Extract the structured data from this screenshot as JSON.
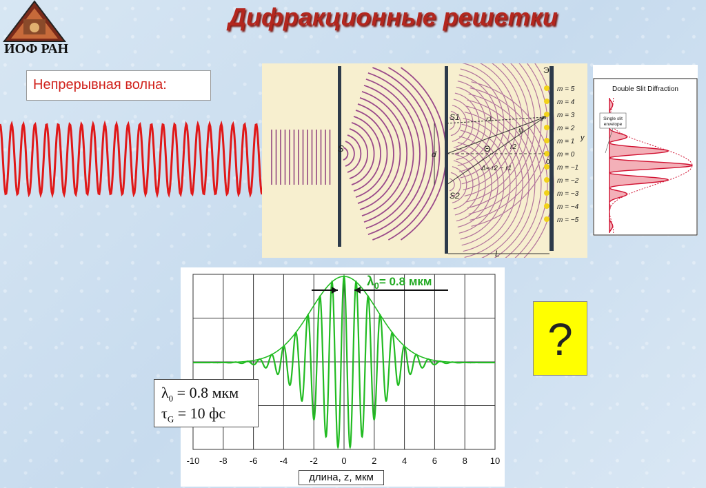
{
  "title": "Дифракционные решетки",
  "logo": {
    "text": "ИОФ РАН"
  },
  "continuous_wave": {
    "label": "Непрерывная волна:",
    "color": "#e01818"
  },
  "diagram": {
    "screen_label": "Э",
    "source_label": "S",
    "slit1_label": "S1",
    "slit2_label": "S2",
    "d_label": "d",
    "L_label": "L",
    "P_label": "P",
    "y_label": "y",
    "zero_label": "0",
    "theta_label": "Θ",
    "psi_label": "ψ",
    "r1_label": "r1",
    "r2_label": "r2",
    "delta_label": "Δ≈ r2 − r1",
    "orders": [
      "m = 5",
      "m = 4",
      "m = 3",
      "m = 2",
      "m = 1",
      "m = 0",
      "m = −1",
      "m = −2",
      "m = −3",
      "m = −4",
      "m = −5"
    ]
  },
  "double_slit": {
    "title": "Double Slit Diffraction",
    "envelope_label_1": "Single slit",
    "envelope_label_2": "envelope"
  },
  "pulse_plot": {
    "annotation": "λ0= 0.8 мкм",
    "annotation_main": "λ",
    "annotation_sub": "0",
    "annotation_rest": "= 0.8 мкм",
    "xlabel": "длина, z, мкм",
    "xticks": [
      "-10",
      "-8",
      "-6",
      "-4",
      "-2",
      "0",
      "2",
      "4",
      "6",
      "8",
      "10"
    ],
    "color": "#22bb22"
  },
  "formula": {
    "line1_sym": "λ",
    "line1_sub": "0",
    "line1_rest": " = 0.8 мкм",
    "line2_sym": "τ",
    "line2_sub": "G",
    "line2_rest": " = 10  фс"
  },
  "question": "?",
  "chart_data": {
    "type": "line",
    "title": "",
    "xlabel": "длина, z, мкм",
    "ylabel": "",
    "x_range": [
      -10,
      10
    ],
    "series": [
      {
        "wavelength_um": 0.8,
        "pulse_duration_fs": 10
      }
    ],
    "xticks": [
      -10,
      -8,
      -6,
      -4,
      -2,
      0,
      2,
      4,
      6,
      8,
      10
    ],
    "grid": true
  }
}
